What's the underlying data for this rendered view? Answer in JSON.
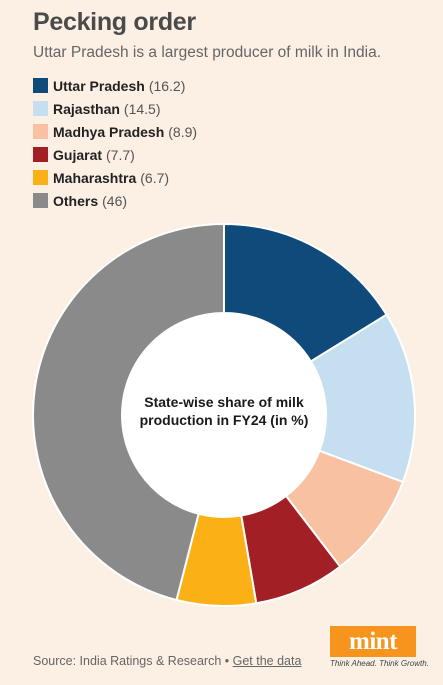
{
  "header": {
    "title": "Pecking order",
    "subtitle": "Uttar Pradesh is a largest producer of milk in India."
  },
  "chart_data": {
    "type": "pie",
    "title": "State-wise share of milk production in FY24 (in %)",
    "categories": [
      "Uttar Pradesh",
      "Rajasthan",
      "Madhya Pradesh",
      "Gujarat",
      "Maharashtra",
      "Others"
    ],
    "values": [
      16.2,
      14.5,
      8.9,
      7.7,
      6.7,
      46
    ],
    "value_labels": [
      "(16.2)",
      "(14.5)",
      "(8.9)",
      "(7.7)",
      "(6.7)",
      "(46)"
    ],
    "colors": [
      "#0f4a7a",
      "#c6dff0",
      "#f8c1a2",
      "#a21f26",
      "#fbb116",
      "#8a8a8a"
    ],
    "donut": true,
    "legend_position": "top-left"
  },
  "center_label": [
    "State-wise share of milk",
    "production in FY24 (in %)"
  ],
  "footer": {
    "source_prefix": "Source: India Ratings & Research • ",
    "source_link": "Get the data"
  },
  "logo": {
    "name": "mint",
    "tagline": "Think Ahead. Think Growth."
  }
}
